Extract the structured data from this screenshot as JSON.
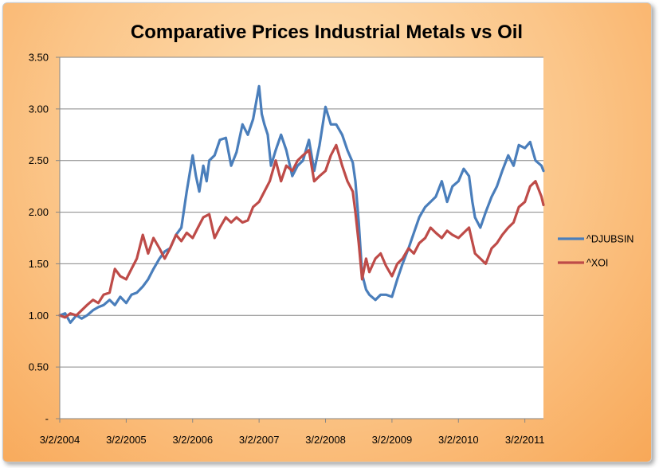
{
  "chart_data": {
    "type": "line",
    "title": "Comparative Prices Industrial Metals vs Oil",
    "xlabel": "",
    "ylabel": "",
    "ylim": [
      0,
      3.5
    ],
    "xlim": [
      2004.17,
      2011.45
    ],
    "y_ticks": [
      {
        "value": 0,
        "label": "-"
      },
      {
        "value": 0.5,
        "label": "0.50"
      },
      {
        "value": 1.0,
        "label": "1.00"
      },
      {
        "value": 1.5,
        "label": "1.50"
      },
      {
        "value": 2.0,
        "label": "2.00"
      },
      {
        "value": 2.5,
        "label": "2.50"
      },
      {
        "value": 3.0,
        "label": "3.00"
      },
      {
        "value": 3.5,
        "label": "3.50"
      }
    ],
    "x_ticks": [
      {
        "value": 2004.17,
        "label": "3/2/2004"
      },
      {
        "value": 2005.17,
        "label": "3/2/2005"
      },
      {
        "value": 2006.17,
        "label": "3/2/2006"
      },
      {
        "value": 2007.17,
        "label": "3/2/2007"
      },
      {
        "value": 2008.17,
        "label": "3/2/2008"
      },
      {
        "value": 2009.17,
        "label": "3/2/2009"
      },
      {
        "value": 2010.17,
        "label": "3/2/2010"
      },
      {
        "value": 2011.17,
        "label": "3/2/2011"
      }
    ],
    "grid": true,
    "legend_position": "right",
    "series": [
      {
        "name": "^DJUBSIN",
        "color": "#4a7ebb",
        "x": [
          2004.17,
          2004.25,
          2004.33,
          2004.42,
          2004.5,
          2004.58,
          2004.67,
          2004.75,
          2004.83,
          2004.92,
          2005.0,
          2005.08,
          2005.17,
          2005.25,
          2005.33,
          2005.42,
          2005.5,
          2005.58,
          2005.67,
          2005.75,
          2005.83,
          2005.92,
          2006.0,
          2006.08,
          2006.17,
          2006.22,
          2006.27,
          2006.33,
          2006.38,
          2006.42,
          2006.5,
          2006.58,
          2006.67,
          2006.75,
          2006.83,
          2006.92,
          2007.0,
          2007.08,
          2007.17,
          2007.21,
          2007.25,
          2007.3,
          2007.35,
          2007.42,
          2007.5,
          2007.58,
          2007.67,
          2007.75,
          2007.83,
          2007.92,
          2008.0,
          2008.08,
          2008.17,
          2008.25,
          2008.33,
          2008.42,
          2008.5,
          2008.58,
          2008.62,
          2008.67,
          2008.72,
          2008.78,
          2008.83,
          2008.92,
          2009.0,
          2009.08,
          2009.17,
          2009.25,
          2009.33,
          2009.42,
          2009.5,
          2009.58,
          2009.67,
          2009.75,
          2009.83,
          2009.92,
          2010.0,
          2010.08,
          2010.17,
          2010.25,
          2010.33,
          2010.38,
          2010.42,
          2010.5,
          2010.58,
          2010.67,
          2010.75,
          2010.83,
          2010.92,
          2011.0,
          2011.08,
          2011.17,
          2011.25,
          2011.33,
          2011.42,
          2011.45
        ],
        "values": [
          1.0,
          1.02,
          0.93,
          1.0,
          0.97,
          1.0,
          1.05,
          1.08,
          1.1,
          1.15,
          1.1,
          1.18,
          1.12,
          1.2,
          1.22,
          1.28,
          1.35,
          1.45,
          1.55,
          1.62,
          1.65,
          1.78,
          1.85,
          2.2,
          2.55,
          2.35,
          2.2,
          2.45,
          2.3,
          2.5,
          2.55,
          2.7,
          2.72,
          2.45,
          2.58,
          2.85,
          2.75,
          2.9,
          3.22,
          2.95,
          2.85,
          2.75,
          2.45,
          2.6,
          2.75,
          2.6,
          2.35,
          2.45,
          2.5,
          2.7,
          2.4,
          2.65,
          3.02,
          2.85,
          2.85,
          2.75,
          2.6,
          2.48,
          2.3,
          1.9,
          1.4,
          1.25,
          1.2,
          1.15,
          1.2,
          1.2,
          1.18,
          1.35,
          1.5,
          1.65,
          1.8,
          1.95,
          2.05,
          2.1,
          2.15,
          2.3,
          2.1,
          2.25,
          2.3,
          2.42,
          2.35,
          2.1,
          1.95,
          1.85,
          2.0,
          2.15,
          2.25,
          2.4,
          2.55,
          2.45,
          2.65,
          2.62,
          2.68,
          2.5,
          2.45,
          2.4
        ]
      },
      {
        "name": "^XOI",
        "color": "#be4b48",
        "x": [
          2004.17,
          2004.25,
          2004.33,
          2004.42,
          2004.5,
          2004.58,
          2004.67,
          2004.75,
          2004.83,
          2004.92,
          2005.0,
          2005.08,
          2005.17,
          2005.25,
          2005.33,
          2005.42,
          2005.5,
          2005.58,
          2005.67,
          2005.75,
          2005.83,
          2005.92,
          2006.0,
          2006.08,
          2006.17,
          2006.25,
          2006.33,
          2006.42,
          2006.5,
          2006.58,
          2006.67,
          2006.75,
          2006.83,
          2006.92,
          2007.0,
          2007.08,
          2007.17,
          2007.25,
          2007.33,
          2007.42,
          2007.5,
          2007.58,
          2007.67,
          2007.75,
          2007.83,
          2007.92,
          2008.0,
          2008.08,
          2008.17,
          2008.25,
          2008.33,
          2008.42,
          2008.5,
          2008.58,
          2008.62,
          2008.67,
          2008.72,
          2008.78,
          2008.83,
          2008.92,
          2009.0,
          2009.08,
          2009.17,
          2009.25,
          2009.33,
          2009.42,
          2009.5,
          2009.58,
          2009.67,
          2009.75,
          2009.83,
          2009.92,
          2010.0,
          2010.08,
          2010.17,
          2010.25,
          2010.33,
          2010.42,
          2010.5,
          2010.58,
          2010.67,
          2010.75,
          2010.83,
          2010.92,
          2011.0,
          2011.08,
          2011.17,
          2011.25,
          2011.33,
          2011.42,
          2011.45
        ],
        "values": [
          1.0,
          0.98,
          1.02,
          1.0,
          1.05,
          1.1,
          1.15,
          1.12,
          1.2,
          1.22,
          1.45,
          1.38,
          1.35,
          1.45,
          1.55,
          1.78,
          1.6,
          1.75,
          1.65,
          1.55,
          1.65,
          1.78,
          1.72,
          1.8,
          1.75,
          1.85,
          1.95,
          1.98,
          1.75,
          1.85,
          1.95,
          1.9,
          1.95,
          1.9,
          1.92,
          2.05,
          2.1,
          2.2,
          2.3,
          2.5,
          2.3,
          2.45,
          2.4,
          2.5,
          2.55,
          2.6,
          2.3,
          2.35,
          2.4,
          2.55,
          2.65,
          2.45,
          2.3,
          2.2,
          2.0,
          1.7,
          1.35,
          1.55,
          1.42,
          1.55,
          1.6,
          1.48,
          1.38,
          1.5,
          1.55,
          1.65,
          1.6,
          1.7,
          1.75,
          1.85,
          1.8,
          1.75,
          1.82,
          1.78,
          1.75,
          1.8,
          1.85,
          1.6,
          1.55,
          1.5,
          1.65,
          1.7,
          1.78,
          1.85,
          1.9,
          2.05,
          2.1,
          2.25,
          2.3,
          2.15,
          2.07
        ]
      }
    ]
  }
}
